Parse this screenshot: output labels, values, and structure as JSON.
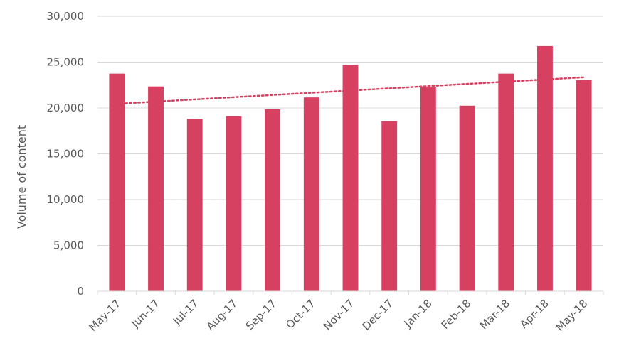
{
  "chart_data": {
    "type": "bar",
    "categories": [
      "May-17",
      "Jun-17",
      "Jul-17",
      "Aug-17",
      "Sep-17",
      "Oct-17",
      "Nov-17",
      "Dec-17",
      "Jan-18",
      "Feb-18",
      "Mar-18",
      "Apr-18",
      "May-18"
    ],
    "values": [
      23750,
      22350,
      18800,
      19100,
      19850,
      21150,
      24700,
      18550,
      22300,
      20250,
      23750,
      26750,
      23050
    ],
    "ylabel": "Volume of content",
    "xlabel": "",
    "ylim": [
      0,
      30000
    ],
    "yticks": [
      "0",
      "5,000",
      "10,000",
      "15,000",
      "20,000",
      "25,000",
      "30,000"
    ],
    "trendline": {
      "type": "linear",
      "style": "dotted",
      "start": 20450,
      "end": 23350
    },
    "grid": true,
    "legend": "none",
    "bar_color": "#d64161",
    "trend_color": "#d64161",
    "grid_color": "#d9d9d9",
    "text_color": "#595959"
  }
}
